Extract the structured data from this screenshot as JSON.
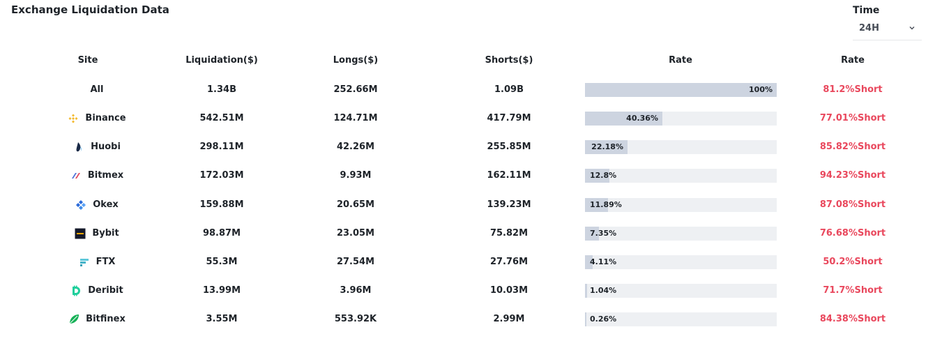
{
  "header": {
    "title": "Exchange Liquidation Data"
  },
  "time_filter": {
    "label": "Time",
    "value": "24H"
  },
  "columns": [
    "Site",
    "Liquidation($)",
    "Longs($)",
    "Shorts($)",
    "Rate",
    "Rate"
  ],
  "rows": [
    {
      "site": "All",
      "icon": "",
      "liquidation": "1.34B",
      "longs": "252.66M",
      "shorts": "1.09B",
      "rate_pct": 100,
      "rate_label": "100%",
      "short_rate": "81.2%Short"
    },
    {
      "site": "Binance",
      "icon": "binance-icon",
      "liquidation": "542.51M",
      "longs": "124.71M",
      "shorts": "417.79M",
      "rate_pct": 40.36,
      "rate_label": "40.36%",
      "short_rate": "77.01%Short"
    },
    {
      "site": "Huobi",
      "icon": "huobi-icon",
      "liquidation": "298.11M",
      "longs": "42.26M",
      "shorts": "255.85M",
      "rate_pct": 22.18,
      "rate_label": "22.18%",
      "short_rate": "85.82%Short"
    },
    {
      "site": "Bitmex",
      "icon": "bitmex-icon",
      "liquidation": "172.03M",
      "longs": "9.93M",
      "shorts": "162.11M",
      "rate_pct": 12.8,
      "rate_label": "12.8%",
      "short_rate": "94.23%Short"
    },
    {
      "site": "Okex",
      "icon": "okex-icon",
      "liquidation": "159.88M",
      "longs": "20.65M",
      "shorts": "139.23M",
      "rate_pct": 11.89,
      "rate_label": "11.89%",
      "short_rate": "87.08%Short"
    },
    {
      "site": "Bybit",
      "icon": "bybit-icon",
      "liquidation": "98.87M",
      "longs": "23.05M",
      "shorts": "75.82M",
      "rate_pct": 7.35,
      "rate_label": "7.35%",
      "short_rate": "76.68%Short"
    },
    {
      "site": "FTX",
      "icon": "ftx-icon",
      "liquidation": "55.3M",
      "longs": "27.54M",
      "shorts": "27.76M",
      "rate_pct": 4.11,
      "rate_label": "4.11%",
      "short_rate": "50.2%Short"
    },
    {
      "site": "Deribit",
      "icon": "deribit-icon",
      "liquidation": "13.99M",
      "longs": "3.96M",
      "shorts": "10.03M",
      "rate_pct": 1.04,
      "rate_label": "1.04%",
      "short_rate": "71.7%Short"
    },
    {
      "site": "Bitfinex",
      "icon": "bitfinex-icon",
      "liquidation": "3.55M",
      "longs": "553.92K",
      "shorts": "2.99M",
      "rate_pct": 0.26,
      "rate_label": "0.26%",
      "short_rate": "84.38%Short"
    }
  ],
  "colors": {
    "short_rate": "#e9485d",
    "bar_fill": "#cdd4e0",
    "bar_track": "#eef0f3"
  }
}
